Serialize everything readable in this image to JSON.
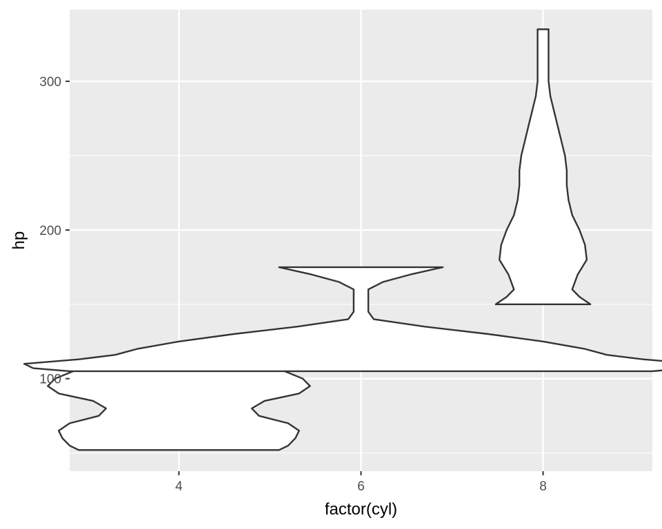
{
  "chart_data": {
    "type": "violin",
    "xlabel": "factor(cyl)",
    "ylabel": "hp",
    "categories": [
      "4",
      "6",
      "8"
    ],
    "ylim": [
      37.8,
      348.2
    ],
    "y_ticks": [
      100,
      200,
      300
    ],
    "y_minor_ticks": [
      50,
      150,
      250
    ],
    "grid": true,
    "colors": {
      "panel": "#ebebeb",
      "grid": "#ffffff",
      "violin_fill": "#ffffff",
      "violin_stroke": "#333333"
    },
    "violins": [
      {
        "category": "4",
        "profile": [
          [
            52,
            0.55
          ],
          [
            55,
            0.6
          ],
          [
            60,
            0.64
          ],
          [
            65,
            0.66
          ],
          [
            70,
            0.6
          ],
          [
            75,
            0.44
          ],
          [
            80,
            0.4
          ],
          [
            85,
            0.47
          ],
          [
            90,
            0.66
          ],
          [
            95,
            0.72
          ],
          [
            100,
            0.68
          ],
          [
            105,
            0.58
          ],
          [
            110,
            0.5
          ],
          [
            113,
            0.48
          ]
        ]
      },
      {
        "category": "6",
        "profile": [
          [
            105,
            1.6
          ],
          [
            107,
            1.8
          ],
          [
            110,
            1.85
          ],
          [
            113,
            1.55
          ],
          [
            116,
            1.35
          ],
          [
            120,
            1.23
          ],
          [
            125,
            1.0
          ],
          [
            130,
            0.7
          ],
          [
            135,
            0.35
          ],
          [
            140,
            0.07
          ],
          [
            145,
            0.04
          ],
          [
            150,
            0.04
          ],
          [
            155,
            0.04
          ],
          [
            160,
            0.04
          ],
          [
            165,
            0.12
          ],
          [
            170,
            0.27
          ],
          [
            175,
            0.45
          ]
        ]
      },
      {
        "category": "8",
        "profile": [
          [
            150,
            0.26
          ],
          [
            155,
            0.2
          ],
          [
            160,
            0.16
          ],
          [
            170,
            0.19
          ],
          [
            180,
            0.24
          ],
          [
            190,
            0.23
          ],
          [
            200,
            0.2
          ],
          [
            210,
            0.16
          ],
          [
            220,
            0.14
          ],
          [
            230,
            0.13
          ],
          [
            240,
            0.13
          ],
          [
            250,
            0.12
          ],
          [
            260,
            0.1
          ],
          [
            270,
            0.08
          ],
          [
            280,
            0.06
          ],
          [
            290,
            0.04
          ],
          [
            300,
            0.03
          ],
          [
            310,
            0.03
          ],
          [
            320,
            0.03
          ],
          [
            335,
            0.03
          ]
        ]
      }
    ]
  }
}
